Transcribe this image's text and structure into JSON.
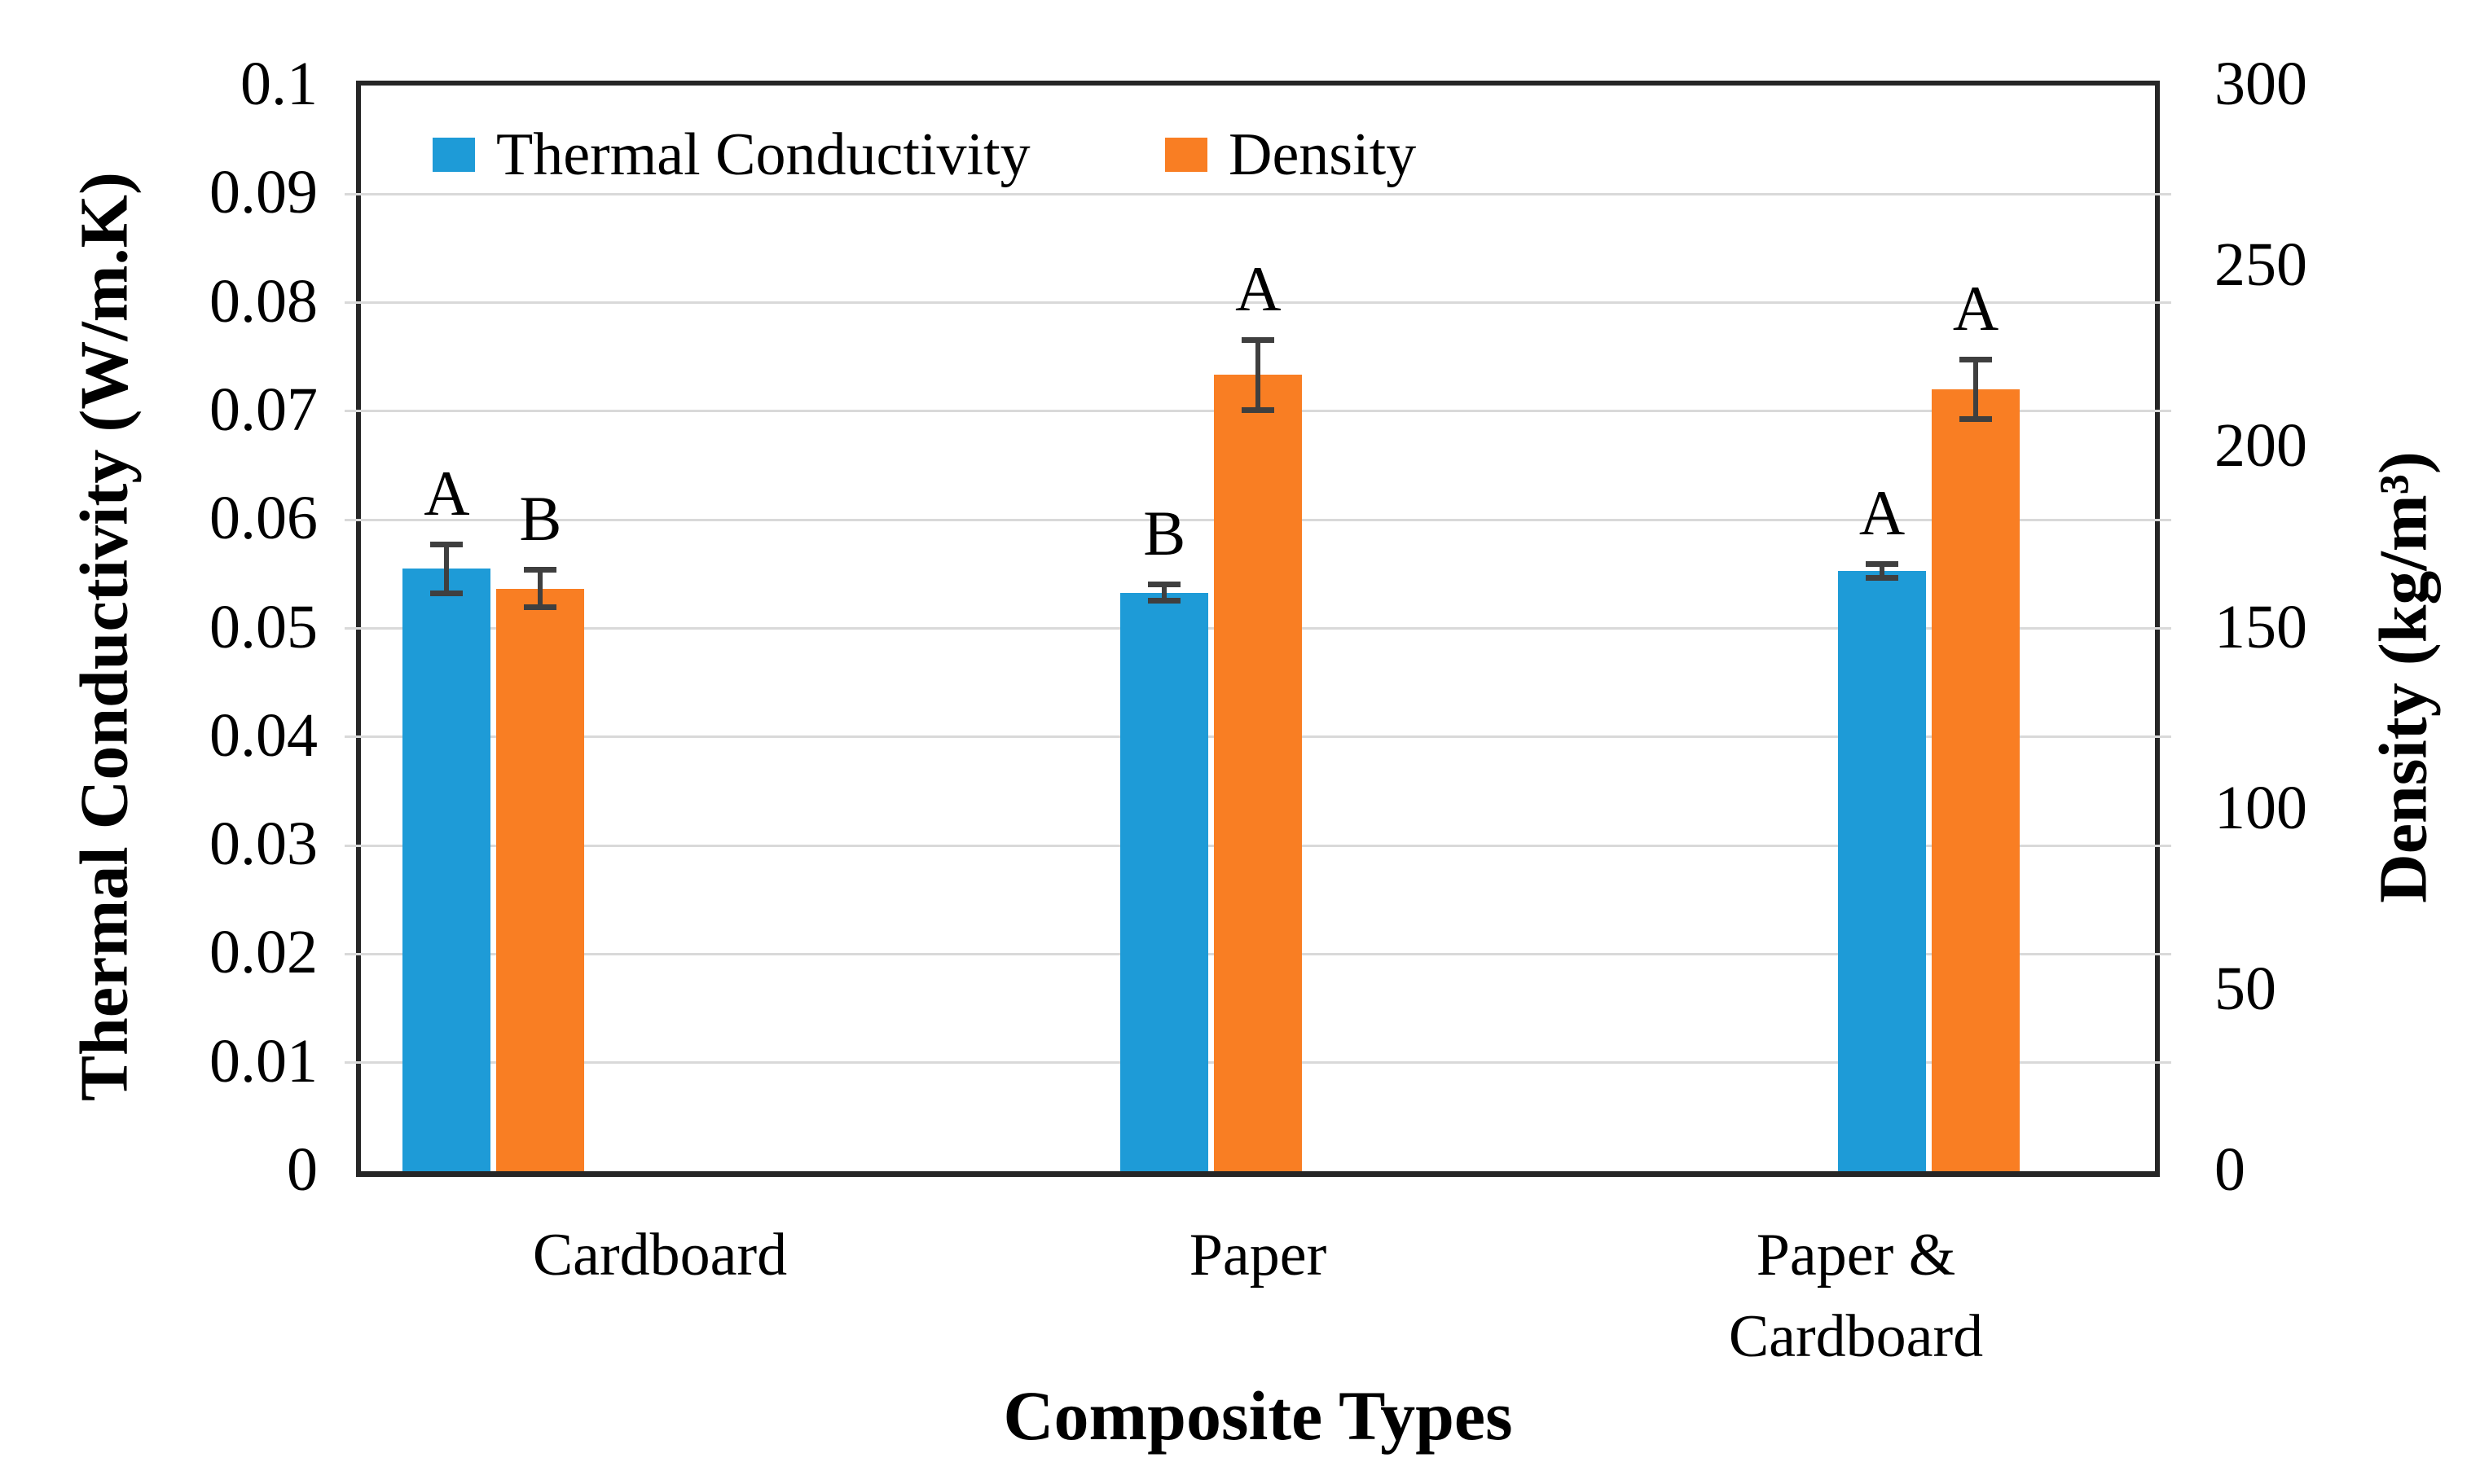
{
  "chart_data": {
    "type": "bar",
    "title": "",
    "categories": [
      "Cardboard",
      "Paper",
      "Paper & Cardboard"
    ],
    "category_lines": [
      [
        "Cardboard"
      ],
      [
        "Paper"
      ],
      [
        "Paper &",
        "Cardboard"
      ]
    ],
    "xlabel": "Composite Types",
    "left_axis": {
      "label": "Thermal Conductivity (W/m.K)",
      "min": 0,
      "max": 0.1,
      "step": 0.01,
      "ticks": [
        "0.1",
        "0.09",
        "0.08",
        "0.07",
        "0.06",
        "0.05",
        "0.04",
        "0.03",
        "0.02",
        "0.01",
        "0"
      ]
    },
    "right_axis": {
      "label": "Density (kg/m³)",
      "min": 0,
      "max": 300,
      "step": 50,
      "ticks": [
        "300",
        "250",
        "200",
        "150",
        "100",
        "50",
        "0"
      ]
    },
    "series": [
      {
        "name": "Thermal Conductivity",
        "axis": "left",
        "color": "#1E9BD7",
        "values": [
          0.0555,
          0.0533,
          0.0553
        ],
        "errors": [
          0.0025,
          0.001,
          0.0009
        ],
        "letters": [
          "A",
          "B",
          "A"
        ]
      },
      {
        "name": "Density",
        "axis": "right",
        "color": "#F97E23",
        "values": [
          161,
          220,
          216
        ],
        "errors": [
          6,
          10.5,
          9
        ],
        "letters": [
          "B",
          "A",
          "A"
        ]
      }
    ],
    "legend_position": "top",
    "grid": true,
    "gridline_color": "#D9D9D9",
    "axis_line_color": "#262626",
    "error_bar_color": "#3F3F3F"
  }
}
